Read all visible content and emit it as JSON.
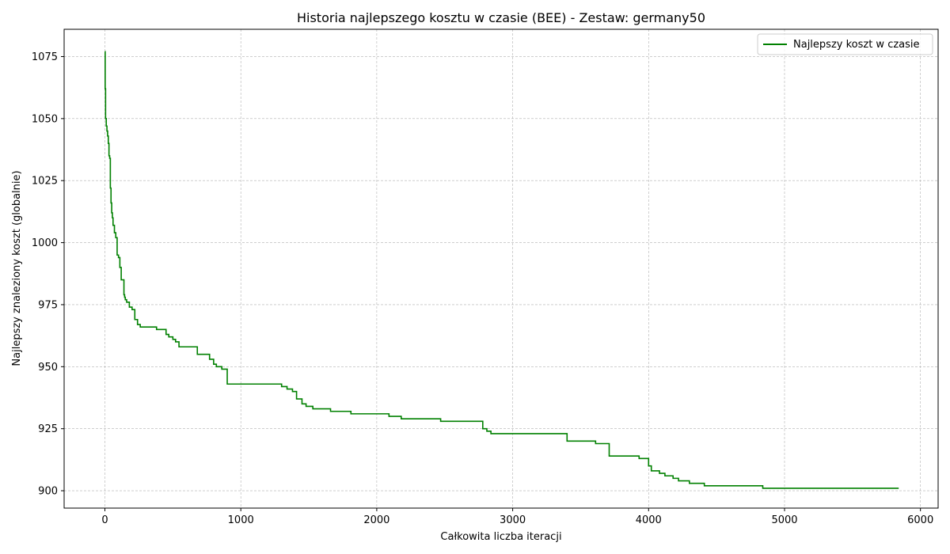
{
  "chart_data": {
    "type": "line",
    "title": "Historia najlepszego kosztu w czasie (BEE) - Zestaw: germany50",
    "xlabel": "Całkowita liczba iteracji",
    "ylabel": "Najlepszy znaleziony koszt (globalnie)",
    "xlim": [
      -300,
      6130
    ],
    "ylim": [
      893,
      1086
    ],
    "xticks": [
      0,
      1000,
      2000,
      3000,
      4000,
      5000,
      6000
    ],
    "yticks": [
      900,
      925,
      950,
      975,
      1000,
      1025,
      1050,
      1075
    ],
    "grid": true,
    "legend_position": "top-right",
    "line_color": "#008000",
    "series": [
      {
        "name": "Najlepszy koszt w czasie",
        "step": true,
        "x": [
          0,
          2,
          5,
          10,
          15,
          20,
          25,
          30,
          35,
          40,
          45,
          50,
          55,
          60,
          70,
          80,
          90,
          100,
          110,
          120,
          140,
          145,
          150,
          160,
          180,
          200,
          220,
          240,
          260,
          280,
          300,
          380,
          450,
          470,
          500,
          520,
          545,
          680,
          770,
          800,
          820,
          860,
          900,
          1300,
          1340,
          1380,
          1410,
          1450,
          1480,
          1530,
          1660,
          1810,
          2090,
          2180,
          2470,
          2780,
          2810,
          2840,
          3400,
          3610,
          3710,
          3930,
          4000,
          4020,
          4080,
          4120,
          4180,
          4220,
          4300,
          4410,
          4840,
          5840
        ],
        "y": [
          1077,
          1062,
          1050,
          1047,
          1045,
          1043,
          1040,
          1035,
          1034,
          1022,
          1016,
          1012,
          1010,
          1007,
          1004,
          1002,
          995,
          994,
          990,
          985,
          979,
          978,
          977,
          976,
          974,
          973,
          969,
          967,
          966,
          966,
          966,
          965,
          963,
          962,
          961,
          960,
          958,
          955,
          953,
          951,
          950,
          949,
          943,
          942,
          941,
          940,
          937,
          935,
          934,
          933,
          932,
          931,
          930,
          929,
          928,
          925,
          924,
          923,
          920,
          919,
          914,
          913,
          910,
          908,
          907,
          906,
          905,
          904,
          903,
          902,
          901,
          901
        ]
      }
    ]
  }
}
